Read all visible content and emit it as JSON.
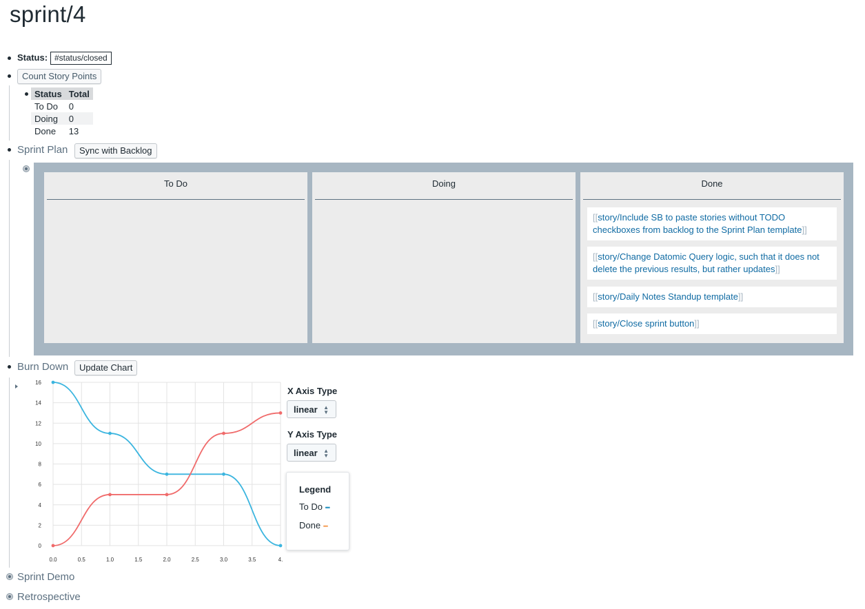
{
  "page": {
    "title": "sprint/4"
  },
  "status": {
    "label": "Status:",
    "tag": "#status/closed"
  },
  "story_points": {
    "button": "Count Story Points",
    "columns": [
      "Status",
      "Total"
    ],
    "rows": [
      {
        "status": "To Do",
        "total": "0"
      },
      {
        "status": "Doing",
        "total": "0"
      },
      {
        "status": "Done",
        "total": "13"
      }
    ]
  },
  "sprint_plan": {
    "label": "Sprint Plan",
    "button": "Sync with Backlog",
    "columns": [
      {
        "title": "To Do",
        "cards": []
      },
      {
        "title": "Doing",
        "cards": []
      },
      {
        "title": "Done",
        "cards": [
          {
            "open": "[[",
            "text": "story/Include SB to paste stories without TODO checkboxes from backlog to the Sprint Plan template",
            "close": "]]"
          },
          {
            "open": "[[",
            "text": "story/Change Datomic Query logic, such that it does not delete the previous results, but rather updates",
            "close": "]]"
          },
          {
            "open": "[[",
            "text": "story/Daily Notes Standup template",
            "close": "]]"
          },
          {
            "open": "[[",
            "text": "story/Close sprint button",
            "close": "]]"
          }
        ]
      }
    ],
    "colors": {
      "board_bg": "#a7b6c2",
      "column_bg": "#ececec",
      "link": "#106ba3"
    }
  },
  "burn_down": {
    "label": "Burn Down",
    "button": "Update Chart",
    "x_axis_label": "X Axis Type",
    "x_axis_value": "linear",
    "y_axis_label": "Y Axis Type",
    "y_axis_value": "linear",
    "legend_title": "Legend",
    "legend_items": [
      {
        "name": "To Do",
        "marker": "•••",
        "color": "#1f8fbf"
      },
      {
        "name": "Done",
        "marker": "•••",
        "color": "#f5a05a"
      }
    ]
  },
  "chart_data": {
    "type": "line",
    "x_ticks": [
      "0.0",
      "0.5",
      "1.0",
      "1.5",
      "2.0",
      "2.5",
      "3.0",
      "3.5",
      "4."
    ],
    "y_ticks": [
      "0",
      "2",
      "4",
      "6",
      "8",
      "10",
      "12",
      "14",
      "16"
    ],
    "xlim": [
      0,
      4
    ],
    "ylim": [
      0,
      16
    ],
    "grid": true,
    "series": [
      {
        "name": "To Do",
        "color": "#3bb5df",
        "x": [
          0,
          1,
          2,
          3,
          4
        ],
        "y": [
          16,
          11,
          7,
          7,
          0
        ]
      },
      {
        "name": "Done",
        "color": "#f06b6b",
        "x": [
          0,
          1,
          2,
          3,
          4
        ],
        "y": [
          0,
          5,
          5,
          11,
          13
        ]
      }
    ]
  },
  "sections": [
    {
      "label": "Sprint Demo"
    },
    {
      "label": "Retrospective"
    }
  ]
}
